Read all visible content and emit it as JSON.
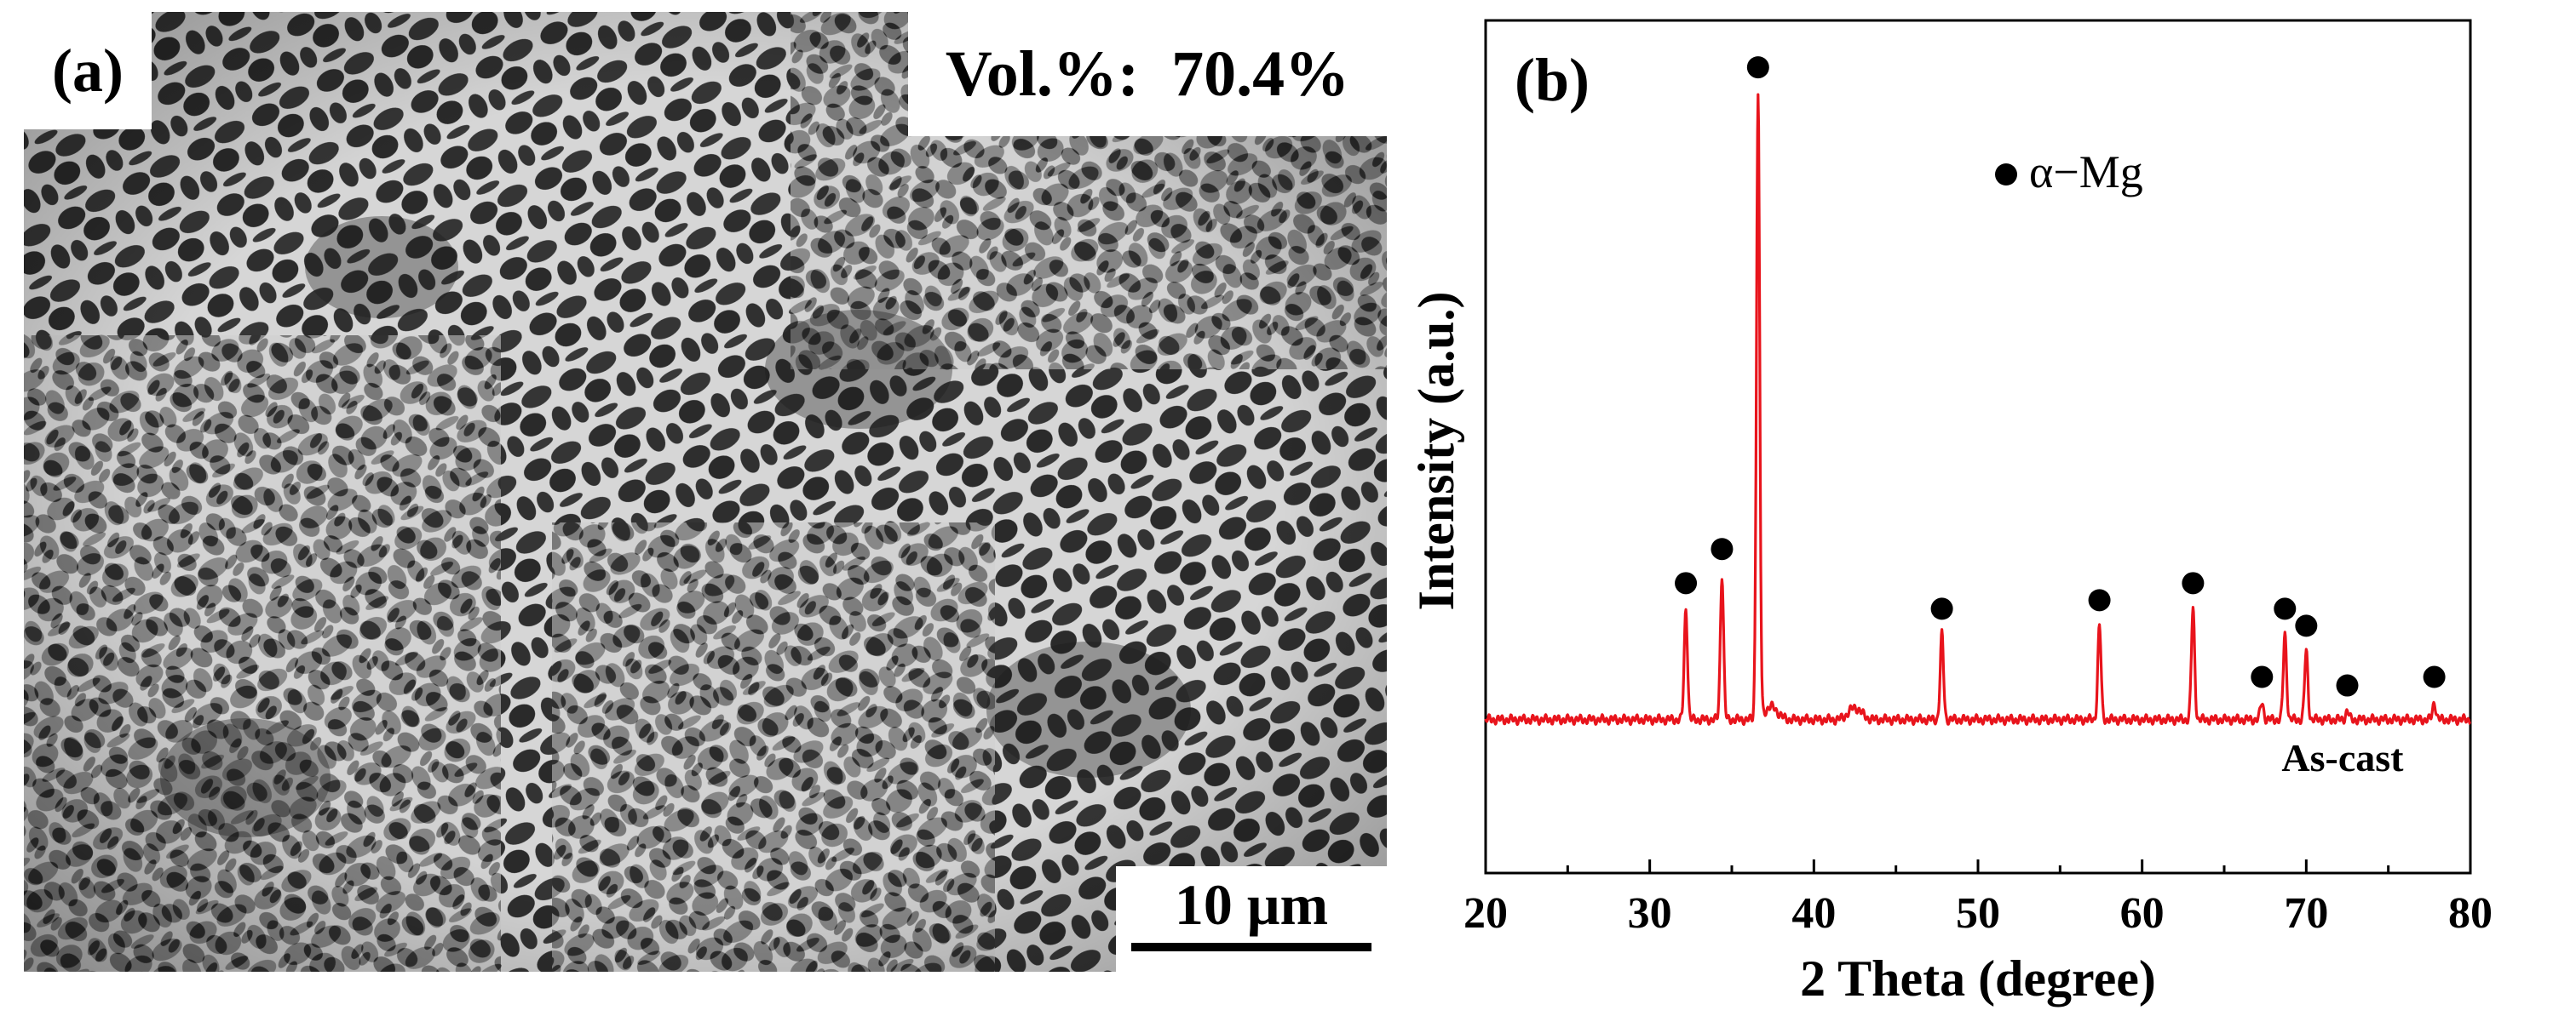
{
  "panel_a": {
    "label": "(a)",
    "volume_fraction_label": "Vol.%:  70.4%",
    "scale_bar_label": "10 μm"
  },
  "chart_data": {
    "type": "line",
    "panel_label": "(b)",
    "xlabel": "2 Theta (degree)",
    "ylabel": "Intensity (a.u.)",
    "xlim": [
      20,
      80
    ],
    "ylim": [
      0,
      100
    ],
    "xticks": [
      20,
      30,
      40,
      50,
      60,
      70,
      80
    ],
    "grid": false,
    "line_color": "#e8141c",
    "series": [
      {
        "name": "As-cast",
        "baseline": 18,
        "peaks": [
          {
            "x": 32.2,
            "y": 31
          },
          {
            "x": 34.4,
            "y": 35
          },
          {
            "x": 36.6,
            "y": 91
          },
          {
            "x": 47.8,
            "y": 28
          },
          {
            "x": 57.4,
            "y": 29
          },
          {
            "x": 63.1,
            "y": 31
          },
          {
            "x": 67.3,
            "y": 20
          },
          {
            "x": 68.7,
            "y": 28
          },
          {
            "x": 70.0,
            "y": 26
          },
          {
            "x": 72.5,
            "y": 19
          },
          {
            "x": 77.8,
            "y": 20
          }
        ],
        "humps": [
          {
            "x": 37.4,
            "y": 19.5
          },
          {
            "x": 42.5,
            "y": 19.4
          }
        ]
      }
    ],
    "peak_markers": {
      "symbol": "filled-circle",
      "phase": "α−Mg",
      "positions": [
        {
          "x": 32.2,
          "y": 34
        },
        {
          "x": 34.4,
          "y": 38
        },
        {
          "x": 36.6,
          "y": 94.5
        },
        {
          "x": 47.8,
          "y": 31
        },
        {
          "x": 57.4,
          "y": 32
        },
        {
          "x": 63.1,
          "y": 34
        },
        {
          "x": 67.3,
          "y": 23
        },
        {
          "x": 68.7,
          "y": 31
        },
        {
          "x": 70.0,
          "y": 29
        },
        {
          "x": 72.5,
          "y": 22
        },
        {
          "x": 77.8,
          "y": 23
        }
      ]
    },
    "legend": {
      "symbol": "filled-circle",
      "label": "α−Mg",
      "placement": "top-center"
    },
    "annotations": [
      {
        "text": "As-cast",
        "x": 68.5,
        "y": 12
      }
    ]
  }
}
